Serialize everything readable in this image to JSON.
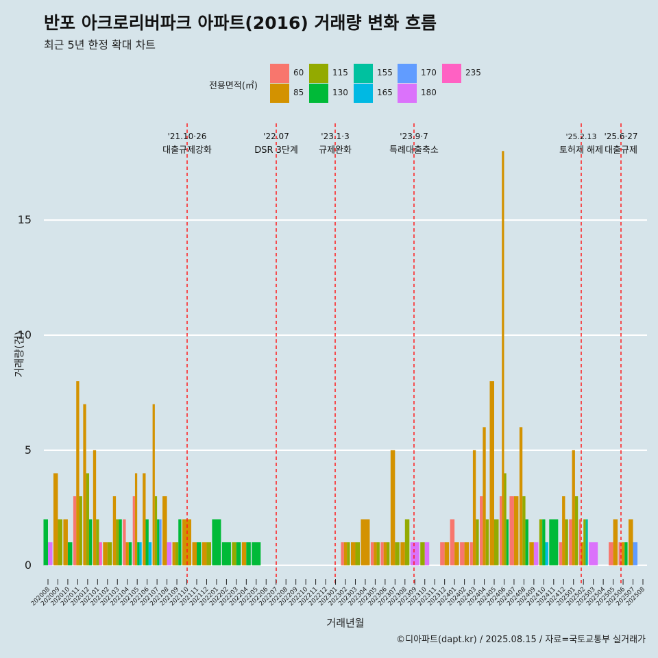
{
  "title": "반포 아크로리버파크 아파트(2016) 거래량 변화 흐름",
  "subtitle": "최근 5년 한정 확대 차트",
  "footer": "©디아파트(dapt.kr) / 2025.08.15 / 자료=국토교통부 실거래가",
  "legend": {
    "title": "전용면적(㎡)",
    "items": [
      {
        "label": "60",
        "color": "#F8766D"
      },
      {
        "label": "85",
        "color": "#D39200"
      },
      {
        "label": "115",
        "color": "#93AA00"
      },
      {
        "label": "130",
        "color": "#00BA38"
      },
      {
        "label": "155",
        "color": "#00C19F"
      },
      {
        "label": "165",
        "color": "#00B9E3"
      },
      {
        "label": "170",
        "color": "#619CFF"
      },
      {
        "label": "180",
        "color": "#DB72FB"
      },
      {
        "label": "235",
        "color": "#FF61C3"
      }
    ]
  },
  "chart_data": {
    "type": "bar",
    "title": "반포 아크로리버파크 아파트(2016) 거래량 변화 흐름",
    "xlabel": "거래년월",
    "ylabel": "거래량(건)",
    "ylim": [
      -0.9,
      19.2
    ],
    "yticks": [
      0,
      5,
      10,
      15
    ],
    "grid": "horizontal",
    "legend_position": "top",
    "categories": [
      "202008",
      "202009",
      "202010",
      "202011",
      "202012",
      "202101",
      "202102",
      "202103",
      "202104",
      "202105",
      "202106",
      "202107",
      "202108",
      "202109",
      "202110",
      "202111",
      "202112",
      "202201",
      "202202",
      "202203",
      "202204",
      "202205",
      "202206",
      "202207",
      "202208",
      "202209",
      "202210",
      "202211",
      "202212",
      "202301",
      "202302",
      "202303",
      "202304",
      "202305",
      "202306",
      "202307",
      "202308",
      "202309",
      "202310",
      "202311",
      "202312",
      "202401",
      "202402",
      "202403",
      "202404",
      "202405",
      "202406",
      "202407",
      "202408",
      "202409",
      "202410",
      "202411",
      "202412",
      "202501",
      "202502",
      "202503",
      "202504",
      "202505",
      "202506",
      "202507",
      "202508"
    ],
    "series": [
      {
        "name": "60",
        "values": [
          0,
          0,
          0,
          3,
          0,
          0,
          0,
          0,
          2,
          3,
          0,
          0,
          0,
          0,
          0,
          0,
          0,
          0,
          0,
          0,
          0,
          0,
          0,
          0,
          0,
          0,
          0,
          0,
          0,
          0,
          1,
          0,
          0,
          1,
          1,
          0,
          0,
          0,
          0,
          0,
          1,
          2,
          1,
          1,
          3,
          0,
          3,
          3,
          0,
          0,
          0,
          0,
          1,
          2,
          2,
          0,
          0,
          1,
          1,
          0,
          0
        ]
      },
      {
        "name": "85",
        "values": [
          0,
          4,
          2,
          8,
          7,
          5,
          1,
          3,
          1,
          4,
          4,
          7,
          3,
          1,
          2,
          1,
          1,
          0,
          0,
          0,
          1,
          0,
          0,
          0,
          0,
          0,
          0,
          0,
          0,
          0,
          1,
          1,
          2,
          1,
          1,
          5,
          1,
          0,
          0,
          0,
          1,
          1,
          1,
          5,
          6,
          8,
          18,
          3,
          6,
          1,
          0,
          0,
          3,
          5,
          1,
          0,
          0,
          2,
          1,
          2,
          0
        ]
      },
      {
        "name": "115",
        "values": [
          0,
          2,
          0,
          3,
          4,
          2,
          1,
          2,
          0,
          0,
          0,
          3,
          0,
          1,
          0,
          0,
          1,
          0,
          0,
          1,
          0,
          0,
          0,
          0,
          0,
          0,
          0,
          0,
          0,
          0,
          1,
          1,
          0,
          1,
          1,
          1,
          2,
          0,
          1,
          0,
          0,
          0,
          0,
          2,
          2,
          2,
          4,
          0,
          3,
          0,
          2,
          0,
          2,
          3,
          2,
          0,
          0,
          0,
          0,
          0,
          0
        ]
      },
      {
        "name": "130",
        "values": [
          2,
          0,
          1,
          0,
          2,
          0,
          0,
          2,
          1,
          1,
          2,
          2,
          0,
          2,
          0,
          1,
          0,
          2,
          1,
          1,
          1,
          1,
          0,
          0,
          0,
          0,
          0,
          0,
          0,
          0,
          0,
          0,
          0,
          0,
          0,
          0,
          0,
          0,
          0,
          0,
          0,
          0,
          0,
          0,
          0,
          0,
          2,
          0,
          2,
          0,
          2,
          2,
          0,
          0,
          0,
          0,
          0,
          0,
          1,
          0,
          0
        ]
      },
      {
        "name": "155",
        "values": [
          0,
          0,
          0,
          0,
          0,
          0,
          0,
          0,
          0,
          0,
          0,
          0,
          0,
          0,
          0,
          0,
          0,
          0,
          0,
          0,
          0,
          0,
          0,
          0,
          0,
          0,
          0,
          0,
          0,
          0,
          0,
          0,
          0,
          0,
          0,
          0,
          0,
          0,
          0,
          0,
          0,
          0,
          0,
          0,
          0,
          0,
          0,
          0,
          0,
          0,
          0,
          0,
          0,
          0,
          2,
          0,
          0,
          0,
          0,
          0,
          0
        ]
      },
      {
        "name": "165",
        "values": [
          0,
          0,
          0,
          0,
          0,
          0,
          0,
          0,
          0,
          1,
          1,
          0,
          0,
          0,
          0,
          0,
          0,
          0,
          0,
          0,
          0,
          0,
          0,
          0,
          0,
          0,
          0,
          0,
          0,
          0,
          0,
          0,
          0,
          0,
          0,
          0,
          0,
          0,
          0,
          0,
          0,
          0,
          0,
          0,
          0,
          0,
          0,
          0,
          0,
          0,
          1,
          0,
          0,
          0,
          0,
          0,
          0,
          0,
          0,
          0,
          0
        ]
      },
      {
        "name": "170",
        "values": [
          0,
          0,
          0,
          0,
          0,
          0,
          0,
          0,
          0,
          0,
          0,
          2,
          0,
          0,
          0,
          0,
          0,
          0,
          0,
          0,
          0,
          0,
          0,
          0,
          0,
          0,
          0,
          0,
          0,
          0,
          0,
          0,
          0,
          0,
          0,
          0,
          0,
          0,
          0,
          0,
          0,
          0,
          0,
          0,
          0,
          0,
          0,
          0,
          0,
          0,
          0,
          0,
          0,
          0,
          0,
          0,
          0,
          0,
          0,
          1,
          0
        ]
      },
      {
        "name": "180",
        "values": [
          1,
          0,
          0,
          0,
          0,
          0,
          0,
          0,
          0,
          0,
          0,
          0,
          1,
          0,
          0,
          0,
          0,
          0,
          0,
          0,
          0,
          0,
          0,
          0,
          0,
          0,
          0,
          0,
          0,
          0,
          0,
          0,
          0,
          0,
          0,
          0,
          0,
          1,
          1,
          0,
          0,
          0,
          0,
          0,
          0,
          0,
          0,
          0,
          0,
          1,
          0,
          0,
          0,
          0,
          0,
          1,
          0,
          0,
          0,
          0,
          0
        ]
      },
      {
        "name": "235",
        "values": [
          0,
          0,
          0,
          0,
          0,
          1,
          0,
          0,
          0,
          0,
          0,
          0,
          0,
          0,
          0,
          0,
          0,
          0,
          0,
          0,
          0,
          0,
          0,
          0,
          0,
          0,
          0,
          0,
          0,
          0,
          0,
          0,
          0,
          0,
          0,
          0,
          0,
          0,
          0,
          0,
          0,
          0,
          0,
          0,
          0,
          0,
          0,
          0,
          0,
          0,
          0,
          0,
          0,
          0,
          0,
          0,
          0,
          0,
          0,
          0,
          0
        ]
      }
    ],
    "annotations": [
      {
        "x": "202110",
        "date": "'21.10·26",
        "label": "대출규제강화"
      },
      {
        "x": "202207",
        "date": "'22.07",
        "label": "DSR 3단계"
      },
      {
        "x": "202301",
        "date": "'23.1·3",
        "label": "규제완화"
      },
      {
        "x": "202309",
        "date": "'23.9·7",
        "label": "특례대출축소"
      },
      {
        "x": "202502",
        "date": "'25.2.13",
        "label": "토허제 해제"
      },
      {
        "x": "202506",
        "date": "'25.6·27",
        "label": "대출규제"
      }
    ]
  }
}
